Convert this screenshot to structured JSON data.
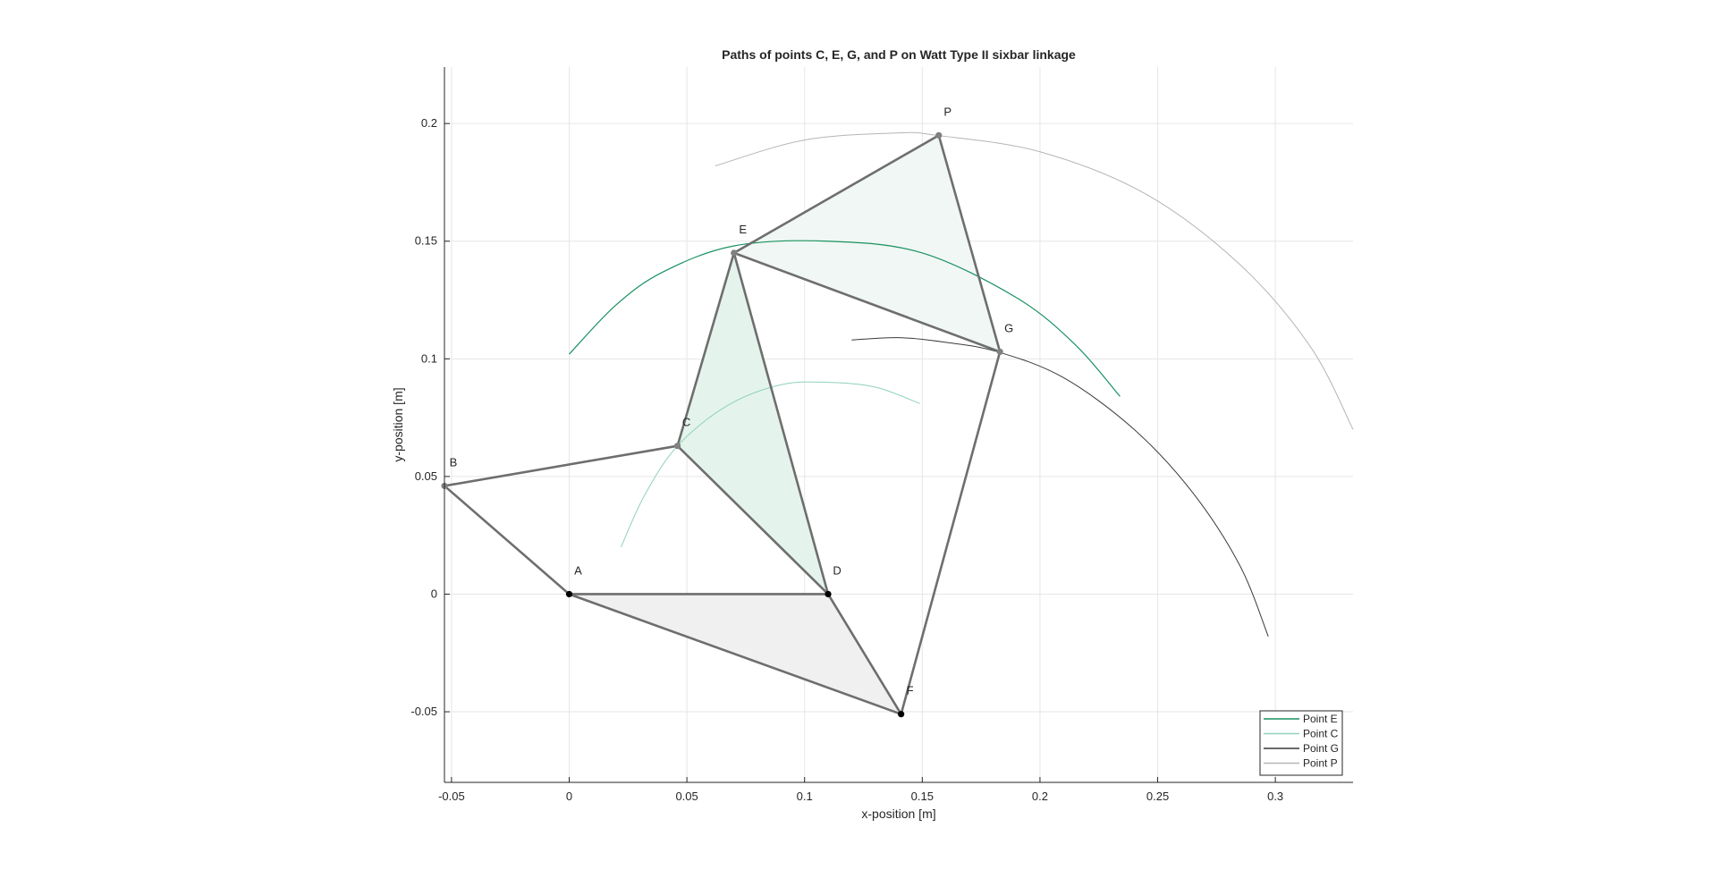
{
  "chart_data": {
    "type": "line",
    "title": "Paths of points C, E, G, and P on Watt Type II sixbar linkage",
    "xlabel": "x-position [m]",
    "ylabel": "y-position [m]",
    "xlim": [
      -0.053,
      0.333
    ],
    "ylim": [
      -0.08,
      0.224
    ],
    "grid": true,
    "xticks": [
      -0.05,
      0,
      0.05,
      0.1,
      0.15,
      0.2,
      0.25,
      0.3
    ],
    "xtick_labels": [
      "-0.05",
      "0",
      "0.05",
      "0.1",
      "0.15",
      "0.2",
      "0.25",
      "0.3"
    ],
    "yticks": [
      -0.05,
      0,
      0.05,
      0.1,
      0.15,
      0.2
    ],
    "ytick_labels": [
      "-0.05",
      "0",
      "0.05",
      "0.1",
      "0.15",
      "0.2"
    ],
    "legend_position": "bottom-right",
    "series": [
      {
        "name": "Point E",
        "color": "#1a9160",
        "width": 1.2,
        "x": [
          0.0,
          0.02,
          0.04,
          0.07,
          0.11,
          0.15,
          0.19,
          0.215,
          0.234
        ],
        "y": [
          0.102,
          0.123,
          0.137,
          0.148,
          0.15,
          0.145,
          0.126,
          0.106,
          0.084
        ]
      },
      {
        "name": "Point C",
        "color": "#8fd1ba",
        "width": 1.0,
        "x": [
          0.022,
          0.032,
          0.046,
          0.067,
          0.09,
          0.11,
          0.13,
          0.149
        ],
        "y": [
          0.02,
          0.042,
          0.063,
          0.08,
          0.089,
          0.09,
          0.088,
          0.081
        ]
      },
      {
        "name": "Point G",
        "color": "#3a3a3a",
        "width": 1.0,
        "x": [
          0.12,
          0.14,
          0.16,
          0.182,
          0.21,
          0.24,
          0.265,
          0.285,
          0.297
        ],
        "y": [
          0.108,
          0.109,
          0.107,
          0.103,
          0.092,
          0.07,
          0.043,
          0.012,
          -0.018
        ]
      },
      {
        "name": "Point P",
        "color": "#b5b5b5",
        "width": 1.0,
        "x": [
          0.062,
          0.1,
          0.14,
          0.156,
          0.2,
          0.245,
          0.285,
          0.315,
          0.333
        ],
        "y": [
          0.182,
          0.193,
          0.196,
          0.195,
          0.188,
          0.17,
          0.14,
          0.105,
          0.07
        ]
      }
    ],
    "polygons": [
      {
        "name": "link-A-D-F",
        "fill": "#f0f0f0",
        "points": [
          [
            0,
            0
          ],
          [
            0.11,
            0
          ],
          [
            0.141,
            -0.051
          ]
        ]
      },
      {
        "name": "link-C-D-E",
        "fill": "#e4f4ec",
        "points": [
          [
            0.046,
            0.063
          ],
          [
            0.11,
            0
          ],
          [
            0.07,
            0.145
          ]
        ]
      },
      {
        "name": "link-E-G-P",
        "fill": "#f0f7f4",
        "points": [
          [
            0.07,
            0.145
          ],
          [
            0.183,
            0.103
          ],
          [
            0.157,
            0.195
          ]
        ]
      }
    ],
    "links": [
      {
        "from": "A",
        "to": "B"
      },
      {
        "from": "B",
        "to": "C"
      },
      {
        "from": "A",
        "to": "D"
      },
      {
        "from": "A",
        "to": "F"
      },
      {
        "from": "D",
        "to": "F"
      },
      {
        "from": "C",
        "to": "D"
      },
      {
        "from": "C",
        "to": "E"
      },
      {
        "from": "E",
        "to": "D"
      },
      {
        "from": "E",
        "to": "G"
      },
      {
        "from": "E",
        "to": "P"
      },
      {
        "from": "G",
        "to": "P"
      },
      {
        "from": "G",
        "to": "F"
      }
    ],
    "link_color": "#6e6e6e",
    "points": [
      {
        "label": "A",
        "x": 0.0,
        "y": 0.0,
        "color": "#000000"
      },
      {
        "label": "B",
        "x": -0.053,
        "y": 0.046,
        "color": "#808080"
      },
      {
        "label": "C",
        "x": 0.046,
        "y": 0.063,
        "color": "#808080"
      },
      {
        "label": "D",
        "x": 0.11,
        "y": 0.0,
        "color": "#000000"
      },
      {
        "label": "E",
        "x": 0.07,
        "y": 0.145,
        "color": "#808080"
      },
      {
        "label": "F",
        "x": 0.141,
        "y": -0.051,
        "color": "#000000"
      },
      {
        "label": "G",
        "x": 0.183,
        "y": 0.103,
        "color": "#808080"
      },
      {
        "label": "P",
        "x": 0.157,
        "y": 0.195,
        "color": "#808080"
      }
    ]
  }
}
